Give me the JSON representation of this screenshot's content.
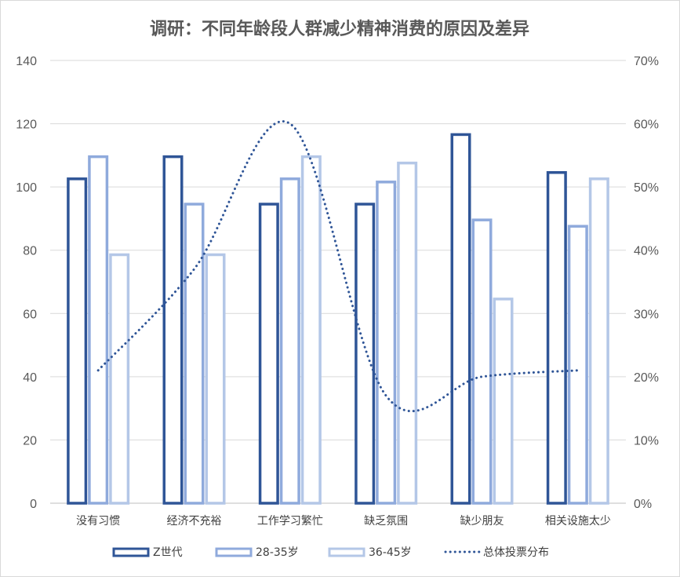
{
  "chart_data": {
    "type": "bar",
    "title": "调研：不同年龄段人群减少精神消费的原因及差异",
    "categories": [
      "没有习惯",
      "经济不充裕",
      "工作学习繁忙",
      "缺乏氛围",
      "缺少朋友",
      "相关设施太少"
    ],
    "series": [
      {
        "name": "Z世代",
        "type": "bar",
        "axis": "left",
        "color": "#2f5597",
        "values": [
          103,
          110,
          95,
          95,
          117,
          105
        ]
      },
      {
        "name": "28-35岁",
        "type": "bar",
        "axis": "left",
        "color": "#8faadc",
        "values": [
          110,
          95,
          103,
          102,
          90,
          88
        ]
      },
      {
        "name": "36-45岁",
        "type": "bar",
        "axis": "left",
        "color": "#b4c7e7",
        "values": [
          79,
          79,
          110,
          108,
          65,
          103
        ]
      },
      {
        "name": "总体投票分布",
        "type": "line",
        "style": "dotted",
        "smooth": true,
        "axis": "right",
        "color": "#2f5597",
        "values": [
          0.21,
          0.37,
          0.6,
          0.17,
          0.2,
          0.21
        ]
      }
    ],
    "left_axis": {
      "ylim": [
        0,
        140
      ],
      "ticks": [
        "0",
        "20",
        "40",
        "60",
        "80",
        "100",
        "120",
        "140"
      ]
    },
    "right_axis": {
      "ylim": [
        0,
        0.7
      ],
      "ticks": [
        "0%",
        "10%",
        "20%",
        "30%",
        "40%",
        "50%",
        "60%",
        "70%"
      ]
    },
    "grid": true,
    "legend": "bottom"
  }
}
